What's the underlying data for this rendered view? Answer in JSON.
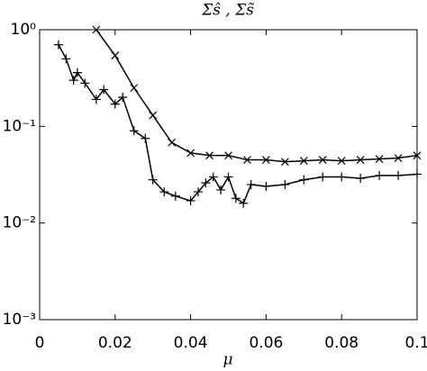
{
  "chart_data": {
    "type": "line",
    "title": "Σŝ , Σs̃",
    "x_label": "μ",
    "log_y": true,
    "xlim": [
      0,
      0.1
    ],
    "xticks": [
      0,
      0.02,
      0.04,
      0.06,
      0.08,
      0.1
    ],
    "ylim": [
      0.001,
      1
    ],
    "yticks": [
      {
        "value": 0.001,
        "label": "10⁻³"
      },
      {
        "value": 0.01,
        "label": "10⁻²"
      },
      {
        "value": 0.1,
        "label": "10⁻¹"
      },
      {
        "value": 1,
        "label": "10⁰"
      }
    ],
    "series": [
      {
        "color": "#000000",
        "marker": "x",
        "x": [
          0.015,
          0.02,
          0.025,
          0.03,
          0.035,
          0.04,
          0.045,
          0.05,
          0.055,
          0.06,
          0.065,
          0.07,
          0.075,
          0.08,
          0.085,
          0.09,
          0.095,
          0.1
        ],
        "values": [
          1.0,
          0.54,
          0.25,
          0.13,
          0.068,
          0.053,
          0.05,
          0.05,
          0.045,
          0.045,
          0.043,
          0.044,
          0.045,
          0.044,
          0.045,
          0.046,
          0.047,
          0.05
        ]
      },
      {
        "color": "#000000",
        "marker": "+",
        "x": [
          0.005,
          0.007,
          0.009,
          0.01,
          0.012,
          0.015,
          0.017,
          0.02,
          0.022,
          0.025,
          0.028,
          0.03,
          0.033,
          0.036,
          0.04,
          0.042,
          0.044,
          0.046,
          0.048,
          0.05,
          0.052,
          0.054,
          0.056,
          0.06,
          0.065,
          0.07,
          0.075,
          0.08,
          0.085,
          0.09,
          0.095,
          0.1
        ],
        "values": [
          0.7,
          0.5,
          0.3,
          0.36,
          0.28,
          0.19,
          0.24,
          0.17,
          0.2,
          0.09,
          0.075,
          0.028,
          0.021,
          0.019,
          0.017,
          0.021,
          0.026,
          0.03,
          0.022,
          0.03,
          0.018,
          0.016,
          0.025,
          0.024,
          0.025,
          0.028,
          0.03,
          0.03,
          0.029,
          0.031,
          0.031,
          0.032
        ]
      }
    ]
  }
}
